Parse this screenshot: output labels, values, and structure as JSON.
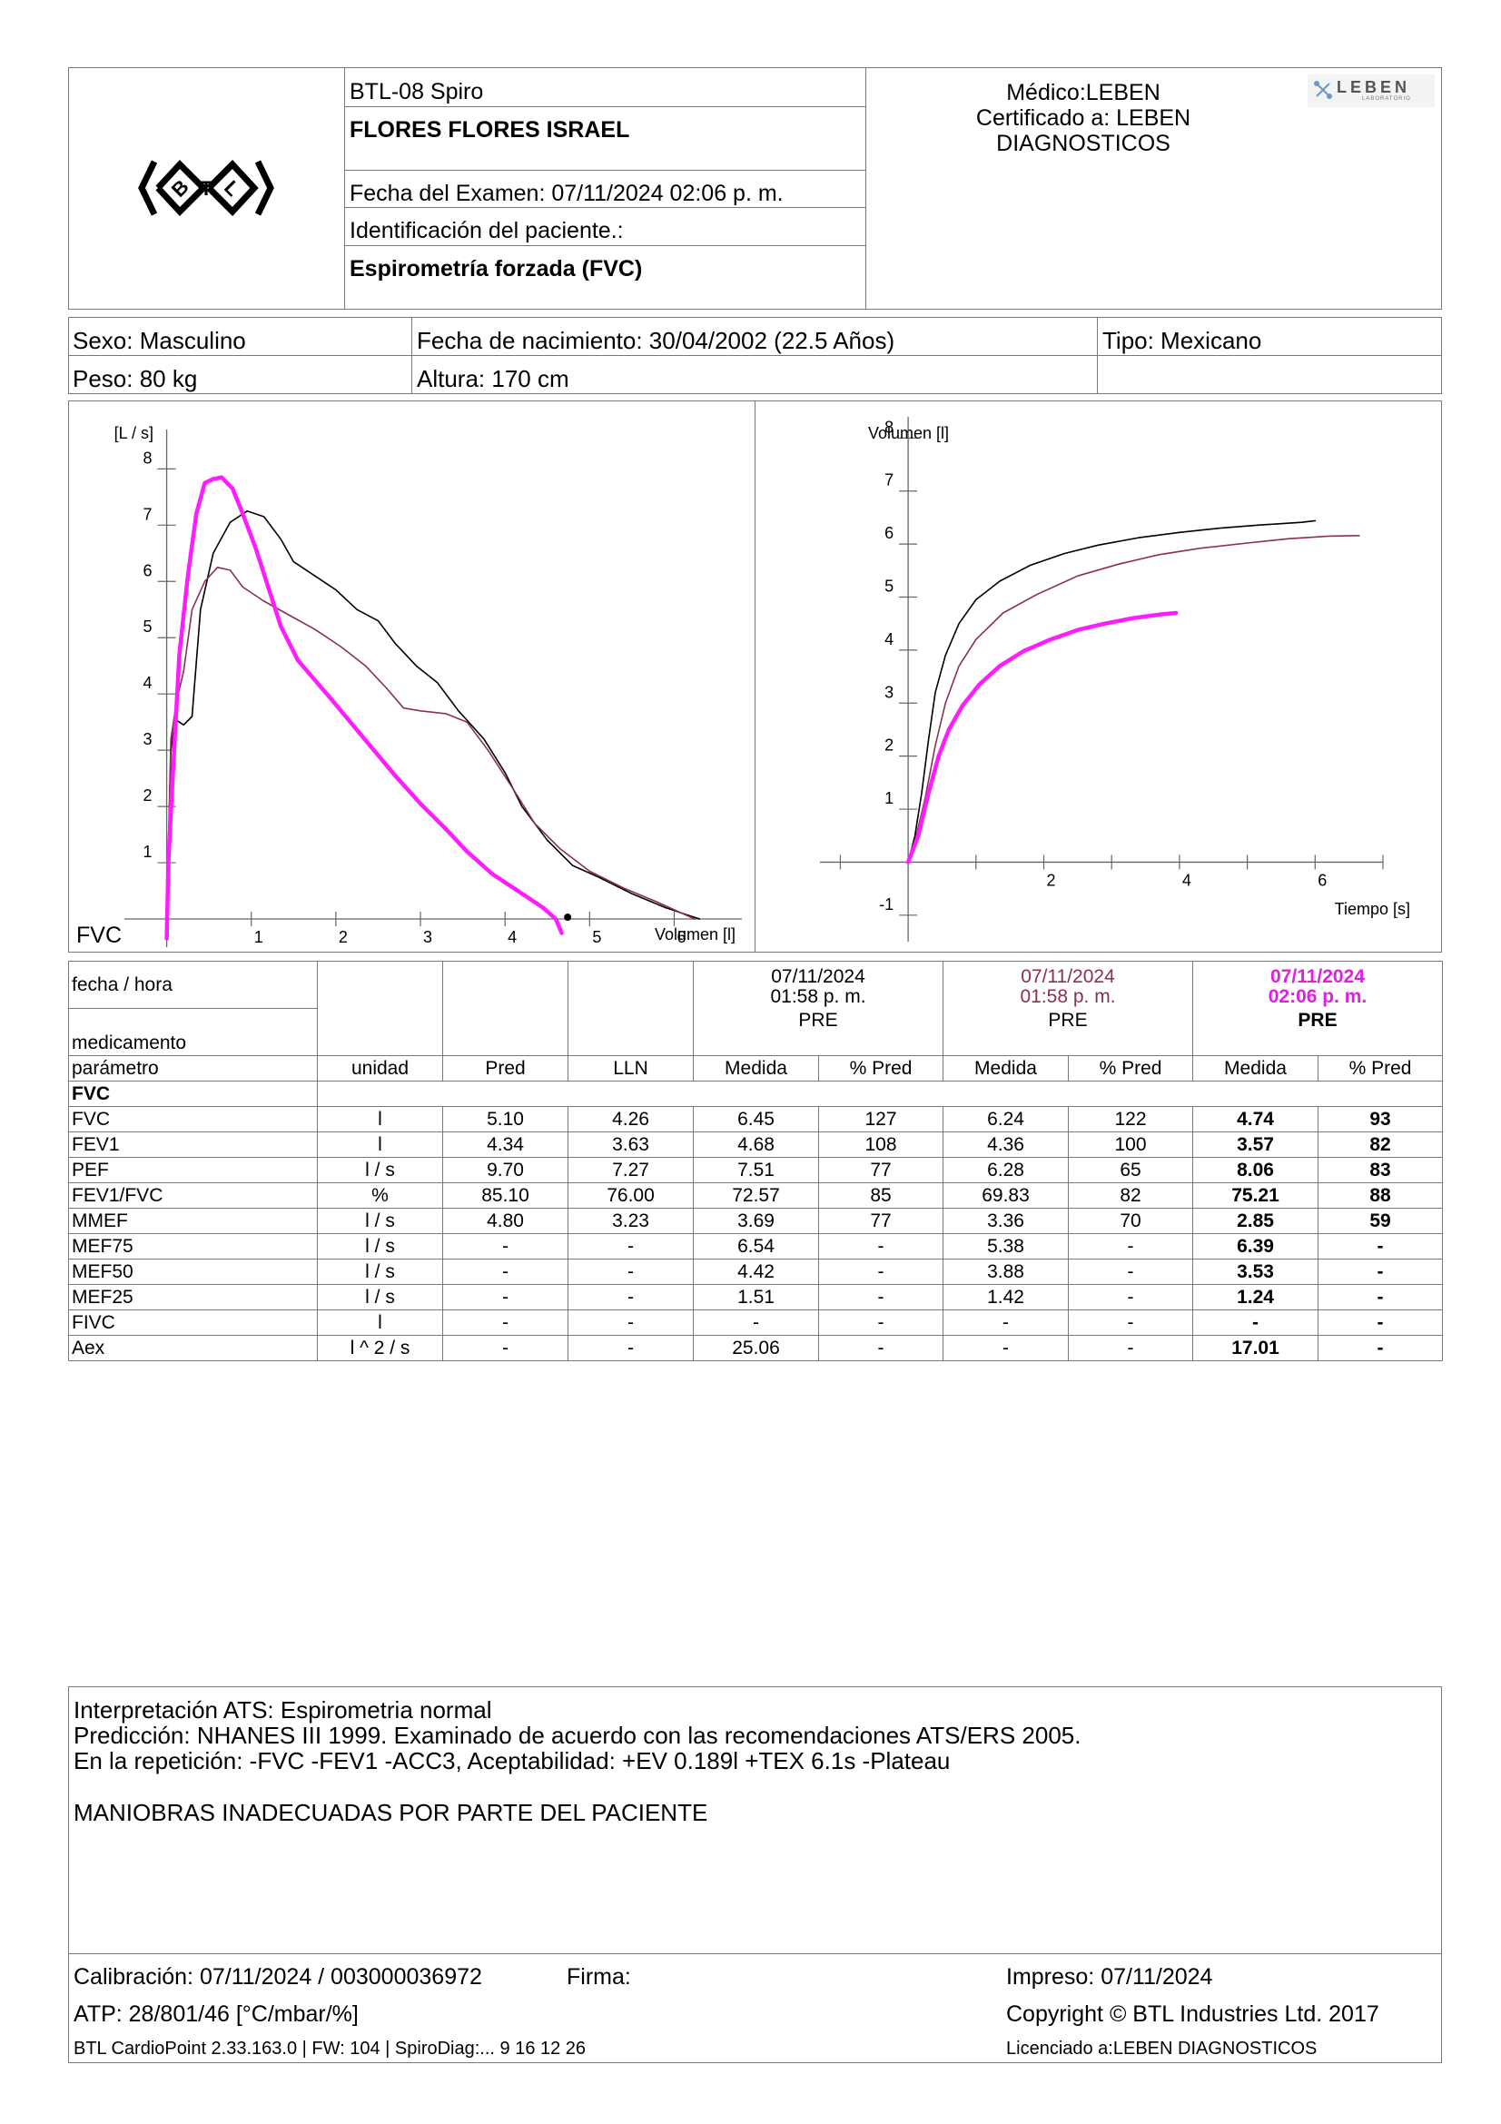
{
  "header": {
    "device": "BTL-08 Spiro",
    "patient_name": "FLORES FLORES ISRAEL",
    "exam_date": "Fecha del Examen:  07/11/2024 02:06 p. m.",
    "patient_id": "Identificación del paciente.:",
    "test_type": "Espirometría forzada (FVC)",
    "doctor": "Médico:LEBEN",
    "certified_line1": "Certificado a: LEBEN",
    "certified_line2": "DIAGNOSTICOS",
    "lab_logo_text": "LEBEN",
    "lab_logo_sub": "LABORATORIO"
  },
  "patient": {
    "sex": "Sexo: Masculino",
    "birth": "Fecha de nacimiento: 30/04/2002 (22.5 Años)",
    "type": "Tipo: Mexicano",
    "weight": "Peso: 80 kg",
    "height": "Altura: 170 cm"
  },
  "colors": {
    "current": "#ff1cff",
    "trial2": "#8a3050",
    "trial1": "#000000"
  },
  "chart_data": [
    {
      "type": "line",
      "title": "FVC",
      "xlabel": "Volumen [l]",
      "ylabel": "[L / s]",
      "xlim": [
        -0.5,
        6.8
      ],
      "ylim": [
        -0.5,
        8.7
      ],
      "xticks": [
        1,
        2,
        3,
        4,
        5,
        6
      ],
      "yticks": [
        1,
        2,
        3,
        4,
        5,
        6,
        7,
        8
      ],
      "series": [
        {
          "color": "#000000",
          "points": [
            [
              0,
              0
            ],
            [
              0.05,
              3.0
            ],
            [
              0.1,
              3.55
            ],
            [
              0.2,
              3.45
            ],
            [
              0.3,
              3.6
            ],
            [
              0.4,
              5.5
            ],
            [
              0.55,
              6.5
            ],
            [
              0.75,
              7.05
            ],
            [
              0.95,
              7.25
            ],
            [
              1.15,
              7.15
            ],
            [
              1.35,
              6.75
            ],
            [
              1.5,
              6.35
            ],
            [
              1.75,
              6.1
            ],
            [
              2.0,
              5.85
            ],
            [
              2.25,
              5.5
            ],
            [
              2.5,
              5.3
            ],
            [
              2.7,
              4.9
            ],
            [
              2.95,
              4.5
            ],
            [
              3.2,
              4.2
            ],
            [
              3.45,
              3.7
            ],
            [
              3.75,
              3.2
            ],
            [
              4.0,
              2.6
            ],
            [
              4.2,
              2.0
            ],
            [
              4.5,
              1.4
            ],
            [
              4.8,
              0.95
            ],
            [
              5.1,
              0.75
            ],
            [
              5.5,
              0.45
            ],
            [
              5.9,
              0.2
            ],
            [
              6.3,
              0.0
            ]
          ]
        },
        {
          "color": "#8a3050",
          "points": [
            [
              0,
              0
            ],
            [
              0.05,
              3.2
            ],
            [
              0.12,
              3.9
            ],
            [
              0.2,
              4.4
            ],
            [
              0.3,
              5.5
            ],
            [
              0.45,
              6.0
            ],
            [
              0.6,
              6.25
            ],
            [
              0.75,
              6.2
            ],
            [
              0.9,
              5.9
            ],
            [
              1.15,
              5.65
            ],
            [
              1.45,
              5.4
            ],
            [
              1.75,
              5.15
            ],
            [
              2.05,
              4.85
            ],
            [
              2.35,
              4.5
            ],
            [
              2.6,
              4.1
            ],
            [
              2.8,
              3.75
            ],
            [
              3.0,
              3.7
            ],
            [
              3.3,
              3.65
            ],
            [
              3.55,
              3.5
            ],
            [
              3.8,
              3.0
            ],
            [
              4.1,
              2.3
            ],
            [
              4.35,
              1.7
            ],
            [
              4.65,
              1.25
            ],
            [
              5.0,
              0.85
            ],
            [
              5.4,
              0.55
            ],
            [
              5.8,
              0.3
            ],
            [
              6.24,
              0.0
            ]
          ]
        },
        {
          "color": "#ff1cff",
          "points": [
            [
              0,
              -0.35
            ],
            [
              0.02,
              1.0
            ],
            [
              0.07,
              2.5
            ],
            [
              0.15,
              4.7
            ],
            [
              0.25,
              6.1
            ],
            [
              0.35,
              7.2
            ],
            [
              0.45,
              7.75
            ],
            [
              0.55,
              7.82
            ],
            [
              0.65,
              7.85
            ],
            [
              0.78,
              7.65
            ],
            [
              0.9,
              7.2
            ],
            [
              1.05,
              6.6
            ],
            [
              1.2,
              5.9
            ],
            [
              1.35,
              5.2
            ],
            [
              1.55,
              4.6
            ],
            [
              1.75,
              4.25
            ],
            [
              1.95,
              3.9
            ],
            [
              2.2,
              3.45
            ],
            [
              2.45,
              3.0
            ],
            [
              2.7,
              2.55
            ],
            [
              3.0,
              2.05
            ],
            [
              3.3,
              1.6
            ],
            [
              3.55,
              1.2
            ],
            [
              3.85,
              0.8
            ],
            [
              4.15,
              0.5
            ],
            [
              4.45,
              0.2
            ],
            [
              4.6,
              0.0
            ],
            [
              4.67,
              -0.25
            ]
          ]
        }
      ],
      "marker_point": [
        4.74,
        0
      ]
    },
    {
      "type": "line",
      "title": "",
      "xlabel": "Tiempo [s]",
      "ylabel": "Volumen [l]",
      "xlim": [
        -1.3,
        7.0
      ],
      "ylim": [
        -1.5,
        8.4
      ],
      "xticks": [
        2,
        4,
        6
      ],
      "yticks": [
        -1,
        1,
        2,
        3,
        4,
        5,
        6,
        7,
        8
      ],
      "series": [
        {
          "color": "#000000",
          "points": [
            [
              0,
              0
            ],
            [
              0.1,
              0.5
            ],
            [
              0.2,
              1.3
            ],
            [
              0.3,
              2.3
            ],
            [
              0.4,
              3.2
            ],
            [
              0.55,
              3.9
            ],
            [
              0.75,
              4.5
            ],
            [
              1.0,
              4.95
            ],
            [
              1.35,
              5.3
            ],
            [
              1.8,
              5.6
            ],
            [
              2.3,
              5.82
            ],
            [
              2.8,
              5.98
            ],
            [
              3.4,
              6.12
            ],
            [
              4.0,
              6.22
            ],
            [
              4.6,
              6.3
            ],
            [
              5.2,
              6.36
            ],
            [
              5.8,
              6.41
            ],
            [
              6.0,
              6.44
            ]
          ]
        },
        {
          "color": "#8a3050",
          "points": [
            [
              0,
              0
            ],
            [
              0.1,
              0.4
            ],
            [
              0.25,
              1.2
            ],
            [
              0.4,
              2.2
            ],
            [
              0.55,
              3.0
            ],
            [
              0.75,
              3.7
            ],
            [
              1.0,
              4.2
            ],
            [
              1.4,
              4.7
            ],
            [
              1.9,
              5.05
            ],
            [
              2.5,
              5.4
            ],
            [
              3.1,
              5.62
            ],
            [
              3.7,
              5.8
            ],
            [
              4.3,
              5.92
            ],
            [
              5.0,
              6.02
            ],
            [
              5.6,
              6.1
            ],
            [
              6.2,
              6.15
            ],
            [
              6.65,
              6.16
            ]
          ]
        },
        {
          "color": "#ff1cff",
          "points": [
            [
              0,
              0
            ],
            [
              0.15,
              0.5
            ],
            [
              0.3,
              1.3
            ],
            [
              0.45,
              2.0
            ],
            [
              0.6,
              2.5
            ],
            [
              0.8,
              2.95
            ],
            [
              1.05,
              3.35
            ],
            [
              1.35,
              3.7
            ],
            [
              1.7,
              3.98
            ],
            [
              2.1,
              4.2
            ],
            [
              2.5,
              4.38
            ],
            [
              2.9,
              4.5
            ],
            [
              3.3,
              4.6
            ],
            [
              3.7,
              4.67
            ],
            [
              3.95,
              4.7
            ]
          ]
        }
      ]
    }
  ],
  "chart_labels": {
    "fv_corner": "FVC"
  },
  "table": {
    "row_fecha": "fecha / hora",
    "row_medicamento": "medicamento",
    "trials": [
      {
        "date": "07/11/2024",
        "time": "01:58 p. m.",
        "med": "PRE"
      },
      {
        "date": "07/11/2024",
        "time": "01:58 p. m.",
        "med": "PRE"
      },
      {
        "date": "07/11/2024",
        "time": "02:06 p. m.",
        "med": "PRE"
      }
    ],
    "col_headers": [
      "parámetro",
      "unidad",
      "Pred",
      "LLN",
      "Medida",
      "% Pred",
      "Medida",
      "% Pred",
      "Medida",
      "% Pred"
    ],
    "section": "FVC",
    "rows": [
      [
        "FVC",
        "l",
        "5.10",
        "4.26",
        "6.45",
        "127",
        "6.24",
        "122",
        "4.74",
        "93"
      ],
      [
        "FEV1",
        "l",
        "4.34",
        "3.63",
        "4.68",
        "108",
        "4.36",
        "100",
        "3.57",
        "82"
      ],
      [
        "PEF",
        "l / s",
        "9.70",
        "7.27",
        "7.51",
        "77",
        "6.28",
        "65",
        "8.06",
        "83"
      ],
      [
        "FEV1/FVC",
        "%",
        "85.10",
        "76.00",
        "72.57",
        "85",
        "69.83",
        "82",
        "75.21",
        "88"
      ],
      [
        "MMEF",
        "l / s",
        "4.80",
        "3.23",
        "3.69",
        "77",
        "3.36",
        "70",
        "2.85",
        "59"
      ],
      [
        "MEF75",
        "l / s",
        "-",
        "-",
        "6.54",
        "-",
        "5.38",
        "-",
        "6.39",
        "-"
      ],
      [
        "MEF50",
        "l / s",
        "-",
        "-",
        "4.42",
        "-",
        "3.88",
        "-",
        "3.53",
        "-"
      ],
      [
        "MEF25",
        "l / s",
        "-",
        "-",
        "1.51",
        "-",
        "1.42",
        "-",
        "1.24",
        "-"
      ],
      [
        "FIVC",
        "l",
        "-",
        "-",
        "-",
        "-",
        "-",
        "-",
        "-",
        "-"
      ],
      [
        "Aex",
        "l ^ 2 / s",
        "-",
        "-",
        "25.06",
        "-",
        "-",
        "-",
        "17.01",
        "-"
      ]
    ]
  },
  "interpretation": {
    "line1": "Interpretación ATS: Espirometria normal",
    "line2": "Predicción: NHANES III 1999. Examinado de acuerdo con las recomendaciones ATS/ERS 2005.",
    "line3": "En la repetición: -FVC -FEV1 -ACC3, Aceptabilidad: +EV 0.189l +TEX 6.1s -Plateau",
    "line4": "MANIOBRAS INADECUADAS POR PARTE DEL PACIENTE"
  },
  "footer": {
    "calibration": "Calibración: 07/11/2024 / 003000036972",
    "signature": "Firma:",
    "printed": "Impreso: 07/11/2024",
    "atp": "ATP: 28/801/46 [°C/mbar/%]",
    "copyright": "Copyright © BTL Industries Ltd. 2017",
    "software": "BTL CardioPoint 2.33.163.0 | FW: 104 | SpiroDiag:... 9 16 12 26",
    "licensed": "Licenciado a:LEBEN DIAGNOSTICOS"
  }
}
